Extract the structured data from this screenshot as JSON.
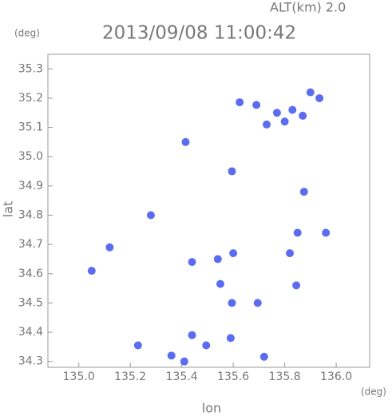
{
  "chart_data": {
    "type": "scatter",
    "title": "2013/09/08 11:00:42",
    "subtitle": "ALT(km) 2.0",
    "y_unit": "(deg)",
    "x_unit": "(deg)",
    "x_label": "lon",
    "y_label": "lat",
    "xlim": [
      134.88,
      136.13
    ],
    "ylim": [
      34.28,
      35.35
    ],
    "xticks": [
      {
        "value": 135,
        "label": "135.0"
      },
      135.2,
      135.4,
      135.6,
      135.8,
      {
        "value": 136,
        "label": "136.0"
      }
    ],
    "yticks": [
      34.3,
      34.4,
      34.5,
      34.6,
      34.7,
      34.8,
      34.9,
      {
        "value": 35,
        "label": "35.0"
      },
      35.1,
      35.2,
      35.3
    ],
    "color": "#4a5cf0",
    "x": [
      135.625,
      135.69,
      135.77,
      135.83,
      135.8,
      135.9,
      135.935,
      135.87,
      135.73,
      135.415,
      135.595,
      135.12,
      135.05,
      135.28,
      135.85,
      135.96,
      135.875,
      135.54,
      135.6,
      135.44,
      135.595,
      135.695,
      135.82,
      135.845,
      135.44,
      135.23,
      135.36,
      135.41,
      135.495,
      135.59,
      135.72,
      135.55
    ],
    "y": [
      35.186,
      35.177,
      35.15,
      35.16,
      35.12,
      35.22,
      35.2,
      35.14,
      35.11,
      35.05,
      34.95,
      34.69,
      34.61,
      34.8,
      34.74,
      34.74,
      34.88,
      34.65,
      34.67,
      34.64,
      34.5,
      34.5,
      34.67,
      34.56,
      34.39,
      34.355,
      34.32,
      34.3,
      34.355,
      34.38,
      34.316,
      34.565
    ]
  }
}
